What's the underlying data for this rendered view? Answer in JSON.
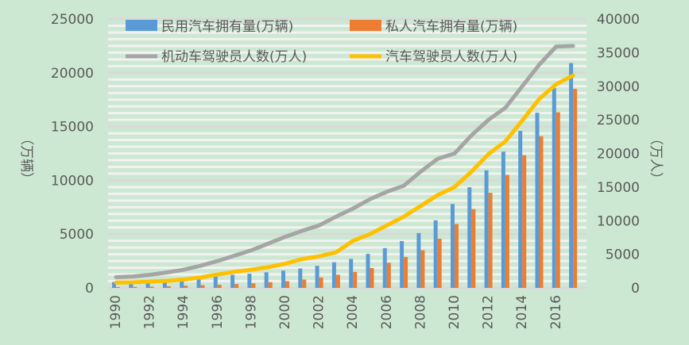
{
  "chart_data": {
    "type": "bar+line",
    "categories": [
      "1990",
      "1991",
      "1992",
      "1993",
      "1994",
      "1995",
      "1996",
      "1997",
      "1998",
      "1999",
      "2000",
      "2001",
      "2002",
      "2003",
      "2004",
      "2005",
      "2006",
      "2007",
      "2008",
      "2009",
      "2010",
      "2011",
      "2012",
      "2013",
      "2014",
      "2015",
      "2016",
      "2017"
    ],
    "x_tick_labels": [
      "1990",
      "1992",
      "1994",
      "1996",
      "1998",
      "2000",
      "2002",
      "2004",
      "2006",
      "2008",
      "2010",
      "2012",
      "2014",
      "2016"
    ],
    "y_left": {
      "label": "（万辆）",
      "ylim": [
        0,
        25000
      ],
      "ticks": [
        "0",
        "5000",
        "10000",
        "15000",
        "20000",
        "25000"
      ]
    },
    "y_right": {
      "label": "（万人）",
      "ylim": [
        0,
        40000
      ],
      "ticks": [
        "0",
        "5000",
        "10000",
        "15000",
        "20000",
        "25000",
        "30000",
        "35000",
        "40000"
      ]
    },
    "grid": true,
    "legend": "top",
    "series": [
      {
        "name": "民用汽车拥有量(万辆)",
        "type": "bar",
        "axis": "left",
        "color": "#5b9bd5",
        "values": [
          551,
          606,
          692,
          817,
          942,
          1040,
          1100,
          1219,
          1319,
          1453,
          1609,
          1802,
          2053,
          2383,
          2694,
          3160,
          3697,
          4358,
          5100,
          6281,
          7802,
          9356,
          10933,
          12670,
          14598,
          16284,
          18575,
          20907
        ]
      },
      {
        "name": "私人汽车拥有量(万辆)",
        "type": "bar",
        "axis": "left",
        "color": "#ed7d31",
        "values": [
          82,
          96,
          118,
          156,
          205,
          250,
          290,
          358,
          424,
          534,
          625,
          771,
          969,
          1219,
          1482,
          1848,
          2333,
          2876,
          3501,
          4575,
          5939,
          7327,
          8839,
          10502,
          12339,
          14099,
          16330,
          18515
        ]
      },
      {
        "name": "机动车驾驶员人数(万人)",
        "type": "line",
        "axis": "right",
        "color": "#a5a5a5",
        "values": [
          1600,
          1700,
          1950,
          2300,
          2700,
          3300,
          4000,
          4800,
          5600,
          6600,
          7600,
          8500,
          9300,
          10600,
          11800,
          13200,
          14300,
          15200,
          17300,
          19200,
          20000,
          22700,
          25000,
          26800,
          30000,
          33200,
          35900,
          36000
        ]
      },
      {
        "name": "汽车驾驶员人数(万人)",
        "type": "line",
        "axis": "right",
        "color": "#ffc000",
        "values": [
          800,
          820,
          950,
          1050,
          1250,
          1550,
          2000,
          2400,
          2700,
          3100,
          3600,
          4300,
          4700,
          5300,
          7000,
          8000,
          9300,
          10600,
          12200,
          13800,
          15000,
          17300,
          19900,
          21800,
          24900,
          28100,
          30300,
          31600
        ]
      }
    ]
  }
}
